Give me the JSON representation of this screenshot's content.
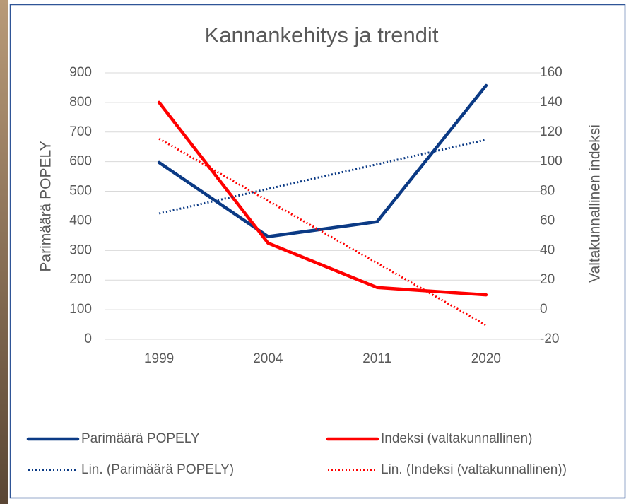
{
  "chart_data": {
    "type": "line",
    "title": "Kannankehitys ja trendit",
    "y_label": "Parimäärä POPELY",
    "y2_label": "Valtakunnallinen indeksi",
    "categories": [
      "1999",
      "2004",
      "2011",
      "2020"
    ],
    "ylim": [
      0,
      900
    ],
    "yticks": [
      0,
      100,
      200,
      300,
      400,
      500,
      600,
      700,
      800,
      900
    ],
    "y2lim": [
      -20,
      160
    ],
    "y2ticks": [
      -20,
      0,
      20,
      40,
      60,
      80,
      100,
      120,
      140,
      160
    ],
    "grid": true,
    "legend": "bottom",
    "series": [
      {
        "name": "Parimäärä POPELY",
        "color": "#0b3a85",
        "line_style": "solid",
        "values": [
          597,
          347,
          397,
          857
        ]
      },
      {
        "name": "Indeksi (valtakunnallinen)",
        "color": "#ff0000",
        "line_style": "solid",
        "axis": "y2",
        "values": [
          140,
          45,
          15,
          10
        ]
      },
      {
        "name": "Lin. (Parimäärä POPELY)",
        "color": "#0b3a85",
        "line_style": "dotted",
        "values": [
          425,
          508,
          591,
          674
        ]
      },
      {
        "name": "Lin. (Indeksi (valtakunnallinen))",
        "color": "#ff0000",
        "line_style": "dotted",
        "axis": "y2",
        "values": [
          115.5,
          73.5,
          31.5,
          -10.5
        ]
      }
    ]
  }
}
